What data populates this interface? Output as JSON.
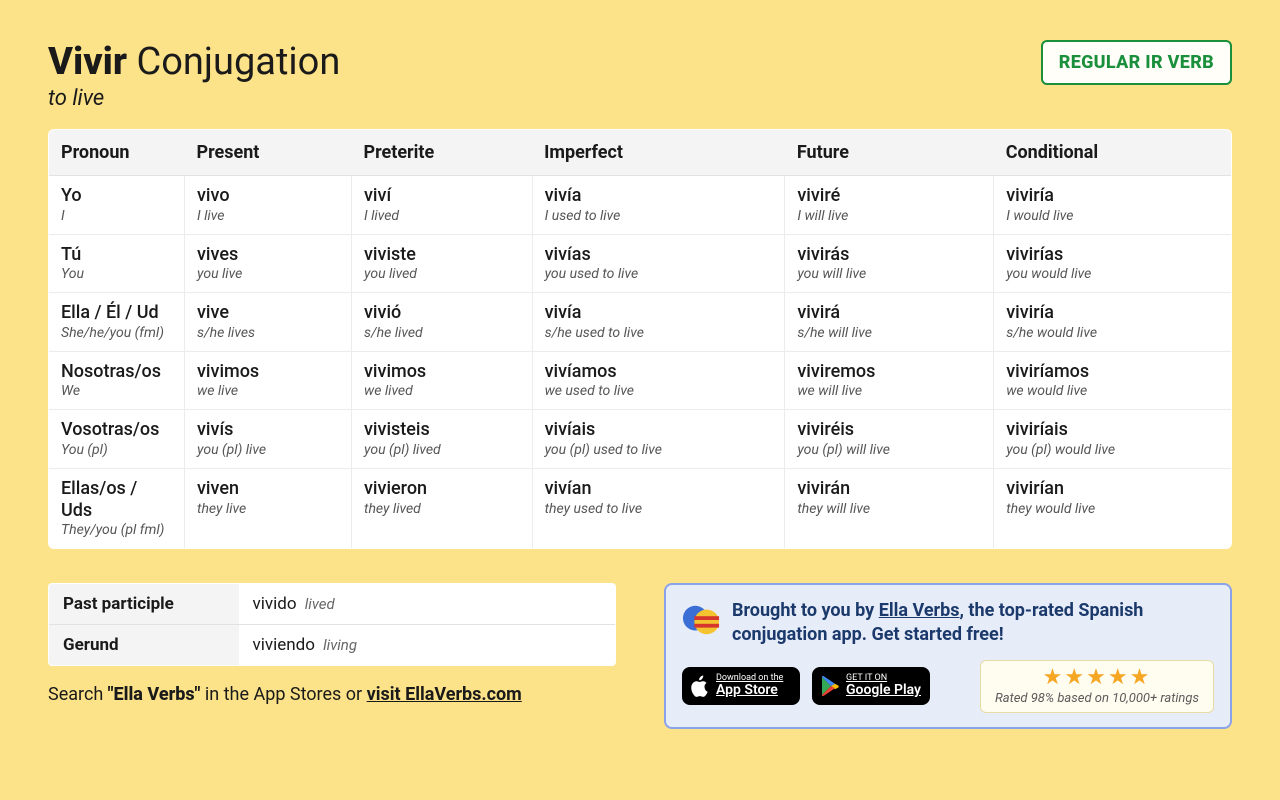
{
  "header": {
    "verb": "Vivir",
    "titleSuffix": "Conjugation",
    "translation": "to live",
    "badge": "REGULAR IR VERB"
  },
  "table": {
    "columns": [
      "Pronoun",
      "Present",
      "Preterite",
      "Imperfect",
      "Future",
      "Conditional"
    ],
    "rows": [
      {
        "pronoun": "Yo",
        "pronoun_gloss": "I",
        "cells": [
          {
            "form": "vivo",
            "gloss": "I live"
          },
          {
            "form": "viví",
            "gloss": "I lived"
          },
          {
            "form": "vivía",
            "gloss": "I used to live"
          },
          {
            "form": "viviré",
            "gloss": "I will live"
          },
          {
            "form": "viviría",
            "gloss": "I would live"
          }
        ]
      },
      {
        "pronoun": "Tú",
        "pronoun_gloss": "You",
        "cells": [
          {
            "form": "vives",
            "gloss": "you live"
          },
          {
            "form": "viviste",
            "gloss": "you lived"
          },
          {
            "form": "vivías",
            "gloss": "you used to live"
          },
          {
            "form": "vivirás",
            "gloss": "you will live"
          },
          {
            "form": "vivirías",
            "gloss": "you would live"
          }
        ]
      },
      {
        "pronoun": "Ella / Él / Ud",
        "pronoun_gloss": "She/he/you (fml)",
        "cells": [
          {
            "form": "vive",
            "gloss": "s/he lives"
          },
          {
            "form": "vivió",
            "gloss": "s/he lived"
          },
          {
            "form": "vivía",
            "gloss": "s/he used to live"
          },
          {
            "form": "vivirá",
            "gloss": "s/he will live"
          },
          {
            "form": "viviría",
            "gloss": "s/he would live"
          }
        ]
      },
      {
        "pronoun": "Nosotras/os",
        "pronoun_gloss": "We",
        "cells": [
          {
            "form": "vivimos",
            "gloss": "we live"
          },
          {
            "form": "vivimos",
            "gloss": "we lived"
          },
          {
            "form": "vivíamos",
            "gloss": "we used to live"
          },
          {
            "form": "viviremos",
            "gloss": "we will live"
          },
          {
            "form": "viviríamos",
            "gloss": "we would live"
          }
        ]
      },
      {
        "pronoun": "Vosotras/os",
        "pronoun_gloss": "You (pl)",
        "cells": [
          {
            "form": "vivís",
            "gloss": "you (pl) live"
          },
          {
            "form": "vivisteis",
            "gloss": "you (pl) lived"
          },
          {
            "form": "vivíais",
            "gloss": "you (pl) used to live"
          },
          {
            "form": "viviréis",
            "gloss": "you (pl) will live"
          },
          {
            "form": "viviríais",
            "gloss": "you (pl) would live"
          }
        ]
      },
      {
        "pronoun": "Ellas/os / Uds",
        "pronoun_gloss": "They/you (pl fml)",
        "cells": [
          {
            "form": "viven",
            "gloss": "they live"
          },
          {
            "form": "vivieron",
            "gloss": "they lived"
          },
          {
            "form": "vivían",
            "gloss": "they used to live"
          },
          {
            "form": "vivirán",
            "gloss": "they will live"
          },
          {
            "form": "vivirían",
            "gloss": "they would live"
          }
        ]
      }
    ]
  },
  "participles": {
    "past": {
      "label": "Past participle",
      "form": "vivido",
      "gloss": "lived"
    },
    "gerund": {
      "label": "Gerund",
      "form": "viviendo",
      "gloss": "living"
    }
  },
  "searchLine": {
    "prefix": "Search ",
    "quoted": "\"Ella Verbs\"",
    "mid": " in the App Stores or ",
    "link": "visit EllaVerbs.com"
  },
  "promo": {
    "text1": "Brought to you by ",
    "link": "Ella Verbs",
    "text2": ", the top-rated Spanish conjugation app. Get started free!",
    "appstore": {
      "top": "Download on the",
      "bottom": "App Store"
    },
    "play": {
      "top": "GET IT ON",
      "bottom": "Google Play"
    },
    "stars": "★★★★★",
    "ratingText": "Rated 98% based on 10,000+ ratings"
  }
}
